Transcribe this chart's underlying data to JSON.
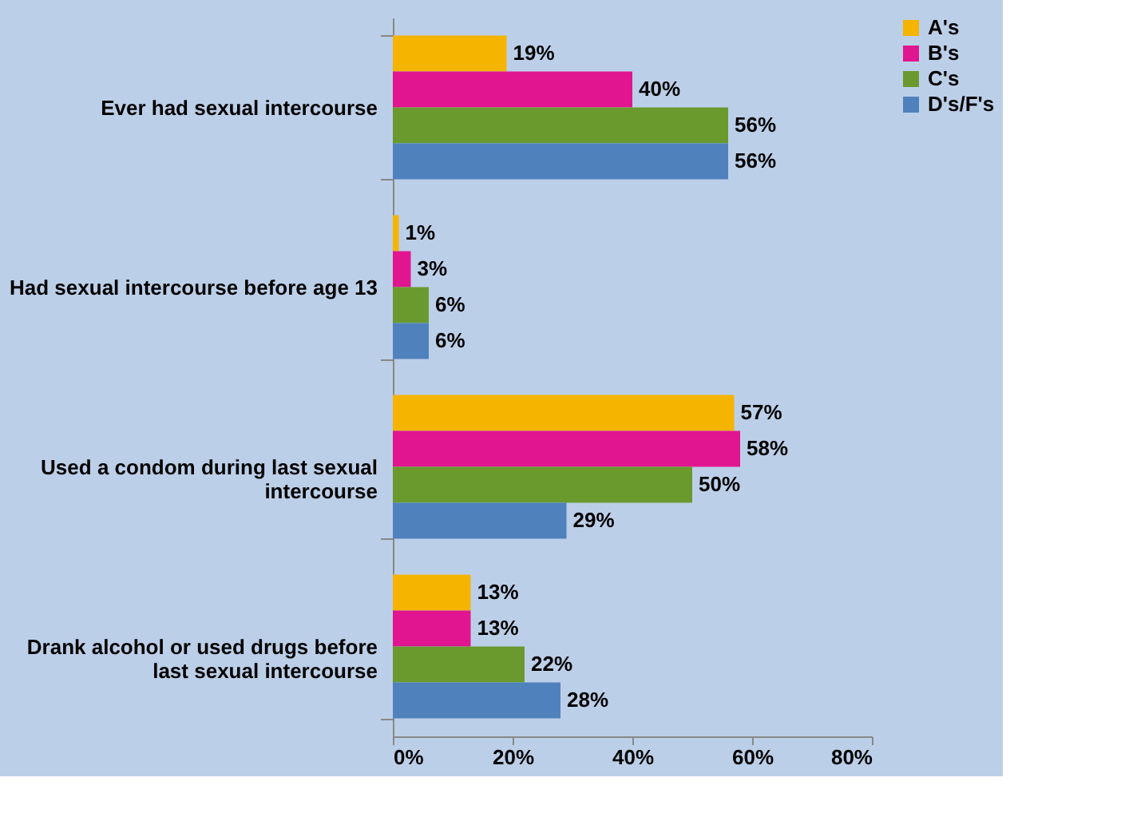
{
  "chart_data": {
    "type": "bar",
    "orientation": "horizontal",
    "categories": [
      "Ever had sexual intercourse",
      "Had sexual intercourse before age 13",
      "Used a condom during last sexual intercourse",
      "Drank alcohol or used drugs before last sexual intercourse"
    ],
    "series": [
      {
        "name": "A's",
        "color": "#f5b400",
        "values": [
          19,
          1,
          57,
          13
        ],
        "value_labels": [
          "19%",
          "1%",
          "57%",
          "13%"
        ]
      },
      {
        "name": "B's",
        "color": "#e0158f",
        "values": [
          40,
          3,
          58,
          13
        ],
        "value_labels": [
          "40%",
          "3%",
          "58%",
          "13%"
        ]
      },
      {
        "name": "C's",
        "color": "#6a9a2e",
        "values": [
          56,
          6,
          50,
          22
        ],
        "value_labels": [
          "56%",
          "6%",
          "50%",
          "22%"
        ]
      },
      {
        "name": "D's/F's",
        "color": "#4f81bd",
        "values": [
          56,
          6,
          29,
          28
        ],
        "value_labels": [
          "56%",
          "6%",
          "29%",
          "28%"
        ]
      }
    ],
    "xlim": [
      0,
      80
    ],
    "xticks": [
      {
        "value": 0,
        "label": "0%"
      },
      {
        "value": 20,
        "label": "20%"
      },
      {
        "value": 40,
        "label": "40%"
      },
      {
        "value": 60,
        "label": "60%"
      },
      {
        "value": 80,
        "label": "80%"
      }
    ],
    "grid": false,
    "legend": "right"
  }
}
